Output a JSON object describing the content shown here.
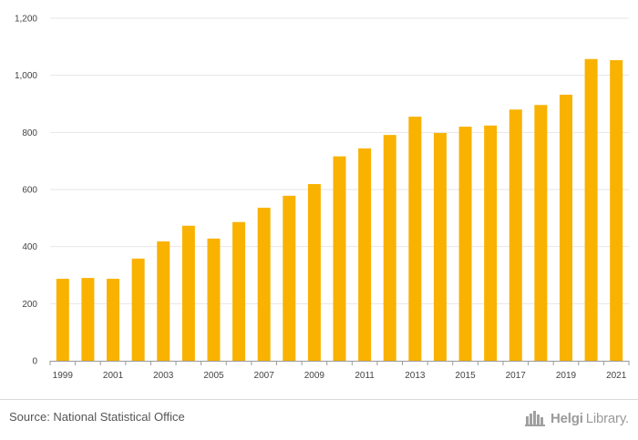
{
  "colors": {
    "bar": "#f9b200",
    "grid": "#e6e6e6",
    "axis": "#999999",
    "text": "#444444"
  },
  "chart_data": {
    "type": "bar",
    "title": "",
    "xlabel": "",
    "ylabel": "",
    "ylim": [
      0,
      1200
    ],
    "yticks": [
      0,
      200,
      400,
      600,
      800,
      1000,
      1200
    ],
    "ytick_labels": [
      "0",
      "200",
      "400",
      "600",
      "800",
      "1,000",
      "1,200"
    ],
    "grid": true,
    "categories": [
      "1999",
      "2000",
      "2001",
      "2002",
      "2003",
      "2004",
      "2005",
      "2006",
      "2007",
      "2008",
      "2009",
      "2010",
      "2011",
      "2012",
      "2013",
      "2014",
      "2015",
      "2016",
      "2017",
      "2018",
      "2019",
      "2020",
      "2021"
    ],
    "xtick_labels_shown": [
      "1999",
      "2001",
      "2003",
      "2005",
      "2007",
      "2009",
      "2011",
      "2013",
      "2015",
      "2017",
      "2019",
      "2021"
    ],
    "values": [
      287,
      290,
      287,
      358,
      418,
      473,
      428,
      486,
      536,
      578,
      619,
      716,
      744,
      791,
      855,
      798,
      820,
      824,
      880,
      896,
      932,
      1057,
      1053
    ]
  },
  "footer": {
    "source": "Source: National Statistical Office",
    "brand_bold": "Helgi",
    "brand_light": "Library."
  }
}
